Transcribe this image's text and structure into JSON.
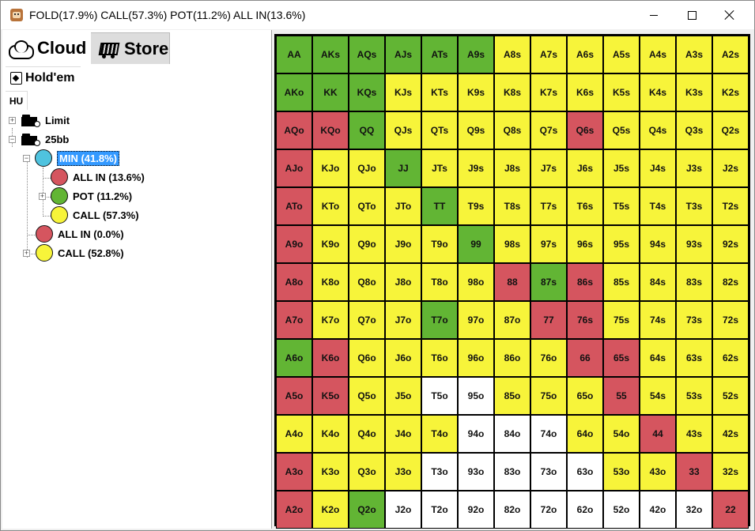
{
  "window": {
    "title": "FOLD(17.9%) CALL(57.3%) POT(11.2%) ALL IN(13.6%)"
  },
  "topbar": {
    "cloud_label": "Cloud",
    "store_label": "Store"
  },
  "tabs": {
    "game_label": "Hold'em",
    "subtab_label": "HU"
  },
  "tree": {
    "limit": "Limit",
    "stack": "25bb",
    "min": "MIN (41.8%)",
    "all_in_child": "ALL IN (13.6%)",
    "pot": "POT (11.2%)",
    "call_child": "CALL (57.3%)",
    "all_in": "ALL IN (0.0%)",
    "call": "CALL (52.8%)"
  },
  "colors": {
    "green": "#62b534",
    "yellow": "#f7f43a",
    "red": "#d5555f",
    "white": "#ffffff",
    "blue": "#4fc3df"
  },
  "grid": {
    "rows": [
      [
        [
          "AA",
          "green"
        ],
        [
          "AKs",
          "green"
        ],
        [
          "AQs",
          "green"
        ],
        [
          "AJs",
          "green"
        ],
        [
          "ATs",
          "green"
        ],
        [
          "A9s",
          "green"
        ],
        [
          "A8s",
          "yellow"
        ],
        [
          "A7s",
          "yellow"
        ],
        [
          "A6s",
          "yellow"
        ],
        [
          "A5s",
          "yellow"
        ],
        [
          "A4s",
          "yellow"
        ],
        [
          "A3s",
          "yellow"
        ],
        [
          "A2s",
          "yellow"
        ]
      ],
      [
        [
          "AKo",
          "green"
        ],
        [
          "KK",
          "green"
        ],
        [
          "KQs",
          "green"
        ],
        [
          "KJs",
          "yellow"
        ],
        [
          "KTs",
          "yellow"
        ],
        [
          "K9s",
          "yellow"
        ],
        [
          "K8s",
          "yellow"
        ],
        [
          "K7s",
          "yellow"
        ],
        [
          "K6s",
          "yellow"
        ],
        [
          "K5s",
          "yellow"
        ],
        [
          "K4s",
          "yellow"
        ],
        [
          "K3s",
          "yellow"
        ],
        [
          "K2s",
          "yellow"
        ]
      ],
      [
        [
          "AQo",
          "red"
        ],
        [
          "KQo",
          "red"
        ],
        [
          "QQ",
          "green"
        ],
        [
          "QJs",
          "yellow"
        ],
        [
          "QTs",
          "yellow"
        ],
        [
          "Q9s",
          "yellow"
        ],
        [
          "Q8s",
          "yellow"
        ],
        [
          "Q7s",
          "yellow"
        ],
        [
          "Q6s",
          "red"
        ],
        [
          "Q5s",
          "yellow"
        ],
        [
          "Q4s",
          "yellow"
        ],
        [
          "Q3s",
          "yellow"
        ],
        [
          "Q2s",
          "yellow"
        ]
      ],
      [
        [
          "AJo",
          "red"
        ],
        [
          "KJo",
          "yellow"
        ],
        [
          "QJo",
          "yellow"
        ],
        [
          "JJ",
          "green"
        ],
        [
          "JTs",
          "yellow"
        ],
        [
          "J9s",
          "yellow"
        ],
        [
          "J8s",
          "yellow"
        ],
        [
          "J7s",
          "yellow"
        ],
        [
          "J6s",
          "yellow"
        ],
        [
          "J5s",
          "yellow"
        ],
        [
          "J4s",
          "yellow"
        ],
        [
          "J3s",
          "yellow"
        ],
        [
          "J2s",
          "yellow"
        ]
      ],
      [
        [
          "ATo",
          "red"
        ],
        [
          "KTo",
          "yellow"
        ],
        [
          "QTo",
          "yellow"
        ],
        [
          "JTo",
          "yellow"
        ],
        [
          "TT",
          "green"
        ],
        [
          "T9s",
          "yellow"
        ],
        [
          "T8s",
          "yellow"
        ],
        [
          "T7s",
          "yellow"
        ],
        [
          "T6s",
          "yellow"
        ],
        [
          "T5s",
          "yellow"
        ],
        [
          "T4s",
          "yellow"
        ],
        [
          "T3s",
          "yellow"
        ],
        [
          "T2s",
          "yellow"
        ]
      ],
      [
        [
          "A9o",
          "red"
        ],
        [
          "K9o",
          "yellow"
        ],
        [
          "Q9o",
          "yellow"
        ],
        [
          "J9o",
          "yellow"
        ],
        [
          "T9o",
          "yellow"
        ],
        [
          "99",
          "green"
        ],
        [
          "98s",
          "yellow"
        ],
        [
          "97s",
          "yellow"
        ],
        [
          "96s",
          "yellow"
        ],
        [
          "95s",
          "yellow"
        ],
        [
          "94s",
          "yellow"
        ],
        [
          "93s",
          "yellow"
        ],
        [
          "92s",
          "yellow"
        ]
      ],
      [
        [
          "A8o",
          "red"
        ],
        [
          "K8o",
          "yellow"
        ],
        [
          "Q8o",
          "yellow"
        ],
        [
          "J8o",
          "yellow"
        ],
        [
          "T8o",
          "yellow"
        ],
        [
          "98o",
          "yellow"
        ],
        [
          "88",
          "red"
        ],
        [
          "87s",
          "green"
        ],
        [
          "86s",
          "red"
        ],
        [
          "85s",
          "yellow"
        ],
        [
          "84s",
          "yellow"
        ],
        [
          "83s",
          "yellow"
        ],
        [
          "82s",
          "yellow"
        ]
      ],
      [
        [
          "A7o",
          "red"
        ],
        [
          "K7o",
          "yellow"
        ],
        [
          "Q7o",
          "yellow"
        ],
        [
          "J7o",
          "yellow"
        ],
        [
          "T7o",
          "green"
        ],
        [
          "97o",
          "yellow"
        ],
        [
          "87o",
          "yellow"
        ],
        [
          "77",
          "red"
        ],
        [
          "76s",
          "red"
        ],
        [
          "75s",
          "yellow"
        ],
        [
          "74s",
          "yellow"
        ],
        [
          "73s",
          "yellow"
        ],
        [
          "72s",
          "yellow"
        ]
      ],
      [
        [
          "A6o",
          "green"
        ],
        [
          "K6o",
          "red"
        ],
        [
          "Q6o",
          "yellow"
        ],
        [
          "J6o",
          "yellow"
        ],
        [
          "T6o",
          "yellow"
        ],
        [
          "96o",
          "yellow"
        ],
        [
          "86o",
          "yellow"
        ],
        [
          "76o",
          "yellow"
        ],
        [
          "66",
          "red"
        ],
        [
          "65s",
          "red"
        ],
        [
          "64s",
          "yellow"
        ],
        [
          "63s",
          "yellow"
        ],
        [
          "62s",
          "yellow"
        ]
      ],
      [
        [
          "A5o",
          "red"
        ],
        [
          "K5o",
          "red"
        ],
        [
          "Q5o",
          "yellow"
        ],
        [
          "J5o",
          "yellow"
        ],
        [
          "T5o",
          "white"
        ],
        [
          "95o",
          "white"
        ],
        [
          "85o",
          "yellow"
        ],
        [
          "75o",
          "yellow"
        ],
        [
          "65o",
          "yellow"
        ],
        [
          "55",
          "red"
        ],
        [
          "54s",
          "yellow"
        ],
        [
          "53s",
          "yellow"
        ],
        [
          "52s",
          "yellow"
        ]
      ],
      [
        [
          "A4o",
          "yellow"
        ],
        [
          "K4o",
          "yellow"
        ],
        [
          "Q4o",
          "yellow"
        ],
        [
          "J4o",
          "yellow"
        ],
        [
          "T4o",
          "yellow"
        ],
        [
          "94o",
          "white"
        ],
        [
          "84o",
          "white"
        ],
        [
          "74o",
          "white"
        ],
        [
          "64o",
          "yellow"
        ],
        [
          "54o",
          "yellow"
        ],
        [
          "44",
          "red"
        ],
        [
          "43s",
          "yellow"
        ],
        [
          "42s",
          "yellow"
        ]
      ],
      [
        [
          "A3o",
          "red"
        ],
        [
          "K3o",
          "yellow"
        ],
        [
          "Q3o",
          "yellow"
        ],
        [
          "J3o",
          "yellow"
        ],
        [
          "T3o",
          "white"
        ],
        [
          "93o",
          "white"
        ],
        [
          "83o",
          "white"
        ],
        [
          "73o",
          "white"
        ],
        [
          "63o",
          "white"
        ],
        [
          "53o",
          "yellow"
        ],
        [
          "43o",
          "yellow"
        ],
        [
          "33",
          "red"
        ],
        [
          "32s",
          "yellow"
        ]
      ],
      [
        [
          "A2o",
          "red"
        ],
        [
          "K2o",
          "yellow"
        ],
        [
          "Q2o",
          "green"
        ],
        [
          "J2o",
          "white"
        ],
        [
          "T2o",
          "white"
        ],
        [
          "92o",
          "white"
        ],
        [
          "82o",
          "white"
        ],
        [
          "72o",
          "white"
        ],
        [
          "62o",
          "white"
        ],
        [
          "52o",
          "white"
        ],
        [
          "42o",
          "white"
        ],
        [
          "32o",
          "white"
        ],
        [
          "22",
          "red"
        ]
      ]
    ]
  }
}
